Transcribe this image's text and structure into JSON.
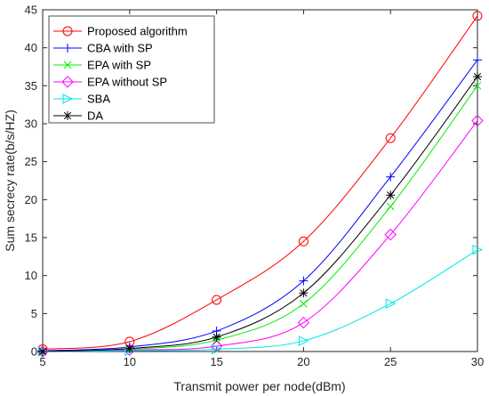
{
  "chart_data": {
    "type": "line",
    "title": "",
    "xlabel": "Transmit power per node(dBm)",
    "ylabel": "Sum secrecy rate(b/s/HZ)",
    "xlim": [
      5,
      30
    ],
    "ylim": [
      0,
      45
    ],
    "x": [
      5,
      10,
      15,
      20,
      25,
      30
    ],
    "xticks": [
      "5",
      "10",
      "15",
      "20",
      "25",
      "30"
    ],
    "yticks": [
      "0",
      "5",
      "10",
      "15",
      "20",
      "25",
      "30",
      "35",
      "40",
      "45"
    ],
    "grid": false,
    "legend_position": "top-left",
    "series": [
      {
        "name": "Proposed algorithm",
        "color": "#ff0000",
        "marker": "circle",
        "values": [
          0.3,
          1.3,
          6.8,
          14.5,
          28.1,
          44.2
        ]
      },
      {
        "name": "CBA with SP",
        "color": "#0000ff",
        "marker": "plus",
        "values": [
          0.1,
          0.6,
          2.7,
          9.3,
          23.0,
          38.4
        ]
      },
      {
        "name": "EPA with SP",
        "color": "#00ee00",
        "marker": "x",
        "values": [
          0.0,
          0.3,
          1.5,
          6.3,
          19.1,
          35.0
        ]
      },
      {
        "name": "EPA without SP",
        "color": "#ff00ff",
        "marker": "diamond",
        "values": [
          0.0,
          0.2,
          0.7,
          3.8,
          15.4,
          30.4
        ]
      },
      {
        "name": "SBA",
        "color": "#00e5e5",
        "marker": "triangle-right",
        "values": [
          0.0,
          0.1,
          0.3,
          1.4,
          6.3,
          13.4
        ]
      },
      {
        "name": "DA",
        "color": "#000000",
        "marker": "star",
        "values": [
          0.0,
          0.4,
          1.9,
          7.7,
          20.6,
          36.2
        ]
      }
    ]
  }
}
